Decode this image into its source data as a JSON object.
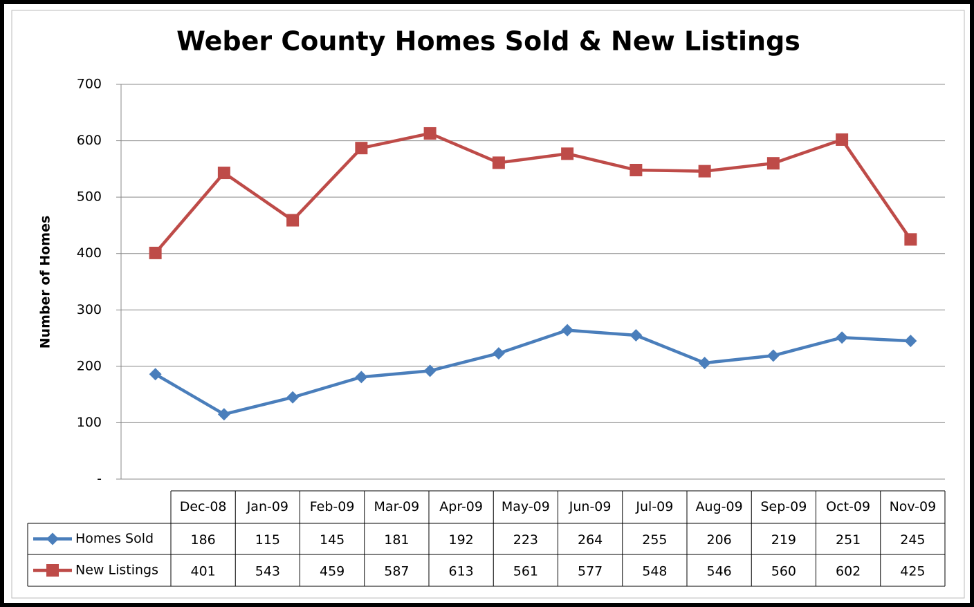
{
  "chart_data": {
    "type": "line",
    "title": "Weber County Homes Sold & New Listings",
    "y_label": "Number of Homes",
    "categories": [
      "Dec-08",
      "Jan-09",
      "Feb-09",
      "Mar-09",
      "Apr-09",
      "May-09",
      "Jun-09",
      "Jul-09",
      "Aug-09",
      "Sep-09",
      "Oct-09",
      "Nov-09"
    ],
    "series": [
      {
        "name": "Homes Sold",
        "color": "#4a7ebb",
        "marker": "diamond",
        "values": [
          186,
          115,
          145,
          181,
          192,
          223,
          264,
          255,
          206,
          219,
          251,
          245
        ]
      },
      {
        "name": "New Listings",
        "color": "#be4b48",
        "marker": "square",
        "values": [
          401,
          543,
          459,
          587,
          613,
          561,
          577,
          548,
          546,
          560,
          602,
          425
        ]
      }
    ],
    "ylim": [
      0,
      700
    ],
    "yticks": [
      {
        "value": 0,
        "label": "-"
      },
      100,
      200,
      300,
      400,
      500,
      600,
      700
    ],
    "grid": true
  }
}
